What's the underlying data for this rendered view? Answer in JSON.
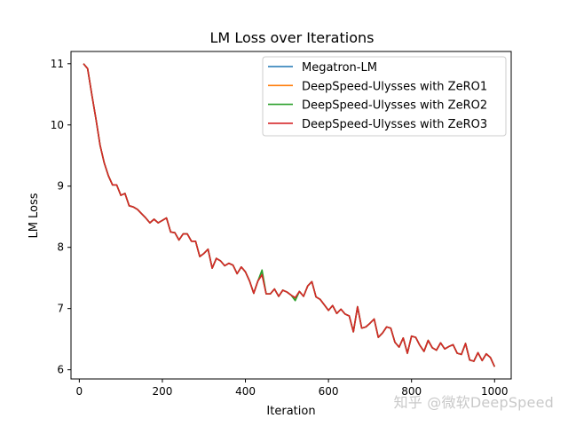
{
  "colors": {
    "megatron": "#1f77b4",
    "zero1": "#ff7f0e",
    "zero2": "#2ca02c",
    "zero3": "#d62728"
  },
  "watermark": "知乎 @微软DeepSpeed",
  "chart_data": {
    "type": "line",
    "title": "LM Loss over Iterations",
    "xlabel": "Iteration",
    "ylabel": "LM Loss",
    "xlim": [
      -20,
      1040
    ],
    "ylim": [
      5.85,
      11.2
    ],
    "xticks": [
      0,
      200,
      400,
      600,
      800,
      1000
    ],
    "yticks": [
      6,
      7,
      8,
      9,
      10,
      11
    ],
    "grid": false,
    "legend_position": "top-right",
    "x": [
      10,
      20,
      30,
      40,
      50,
      60,
      70,
      80,
      90,
      100,
      110,
      120,
      130,
      140,
      150,
      160,
      170,
      180,
      190,
      200,
      210,
      220,
      230,
      240,
      250,
      260,
      270,
      280,
      290,
      300,
      310,
      320,
      330,
      340,
      350,
      360,
      370,
      380,
      390,
      400,
      410,
      420,
      430,
      440,
      450,
      460,
      470,
      480,
      490,
      500,
      510,
      520,
      530,
      540,
      550,
      560,
      570,
      580,
      590,
      600,
      610,
      620,
      630,
      640,
      650,
      660,
      670,
      680,
      690,
      700,
      710,
      720,
      730,
      740,
      750,
      760,
      770,
      780,
      790,
      800,
      810,
      820,
      830,
      840,
      850,
      860,
      870,
      880,
      890,
      900,
      910,
      920,
      930,
      940,
      950,
      960,
      970,
      980,
      990,
      1000
    ],
    "series": [
      {
        "name": "Megatron-LM",
        "color_key": "megatron",
        "values": [
          11.0,
          10.92,
          10.5,
          10.1,
          9.67,
          9.38,
          9.17,
          9.02,
          9.02,
          8.85,
          8.88,
          8.68,
          8.66,
          8.62,
          8.55,
          8.48,
          8.4,
          8.46,
          8.4,
          8.44,
          8.48,
          8.25,
          8.24,
          8.12,
          8.22,
          8.22,
          8.1,
          8.1,
          7.85,
          7.9,
          7.97,
          7.66,
          7.82,
          7.78,
          7.7,
          7.74,
          7.71,
          7.57,
          7.68,
          7.6,
          7.45,
          7.25,
          7.45,
          7.58,
          7.24,
          7.24,
          7.32,
          7.2,
          7.3,
          7.27,
          7.22,
          7.15,
          7.28,
          7.2,
          7.37,
          7.44,
          7.19,
          7.15,
          7.06,
          6.97,
          7.05,
          6.92,
          6.99,
          6.91,
          6.88,
          6.62,
          7.03,
          6.68,
          6.7,
          6.76,
          6.83,
          6.53,
          6.6,
          6.7,
          6.68,
          6.45,
          6.37,
          6.52,
          6.27,
          6.55,
          6.53,
          6.4,
          6.3,
          6.48,
          6.36,
          6.32,
          6.44,
          6.34,
          6.38,
          6.41,
          6.27,
          6.25,
          6.43,
          6.16,
          6.14,
          6.28,
          6.15,
          6.26,
          6.2,
          6.05
        ]
      },
      {
        "name": "DeepSpeed-Ulysses with ZeRO1",
        "color_key": "zero1",
        "values": [
          11.0,
          10.92,
          10.5,
          10.1,
          9.67,
          9.38,
          9.17,
          9.02,
          9.02,
          8.85,
          8.88,
          8.68,
          8.66,
          8.62,
          8.55,
          8.48,
          8.4,
          8.46,
          8.4,
          8.44,
          8.48,
          8.25,
          8.24,
          8.12,
          8.22,
          8.22,
          8.1,
          8.1,
          7.85,
          7.9,
          7.97,
          7.66,
          7.82,
          7.78,
          7.7,
          7.74,
          7.71,
          7.57,
          7.68,
          7.6,
          7.45,
          7.25,
          7.45,
          7.56,
          7.24,
          7.24,
          7.32,
          7.2,
          7.3,
          7.27,
          7.22,
          7.17,
          7.28,
          7.2,
          7.37,
          7.44,
          7.19,
          7.15,
          7.06,
          6.97,
          7.05,
          6.92,
          6.99,
          6.91,
          6.88,
          6.62,
          7.03,
          6.68,
          6.7,
          6.76,
          6.83,
          6.53,
          6.6,
          6.7,
          6.68,
          6.45,
          6.37,
          6.52,
          6.27,
          6.55,
          6.53,
          6.4,
          6.3,
          6.48,
          6.36,
          6.32,
          6.44,
          6.34,
          6.38,
          6.41,
          6.27,
          6.25,
          6.43,
          6.16,
          6.14,
          6.28,
          6.15,
          6.26,
          6.2,
          6.05
        ]
      },
      {
        "name": "DeepSpeed-Ulysses with ZeRO2",
        "color_key": "zero2",
        "values": [
          11.0,
          10.92,
          10.5,
          10.1,
          9.67,
          9.38,
          9.17,
          9.02,
          9.02,
          8.85,
          8.88,
          8.68,
          8.66,
          8.62,
          8.55,
          8.48,
          8.4,
          8.46,
          8.4,
          8.44,
          8.48,
          8.25,
          8.24,
          8.12,
          8.22,
          8.22,
          8.1,
          8.1,
          7.85,
          7.9,
          7.97,
          7.66,
          7.82,
          7.78,
          7.7,
          7.74,
          7.71,
          7.57,
          7.68,
          7.6,
          7.45,
          7.25,
          7.45,
          7.63,
          7.24,
          7.24,
          7.32,
          7.2,
          7.3,
          7.27,
          7.22,
          7.13,
          7.28,
          7.2,
          7.37,
          7.44,
          7.19,
          7.15,
          7.06,
          6.97,
          7.05,
          6.92,
          6.99,
          6.91,
          6.88,
          6.62,
          7.03,
          6.68,
          6.7,
          6.76,
          6.83,
          6.53,
          6.6,
          6.7,
          6.68,
          6.45,
          6.37,
          6.52,
          6.27,
          6.55,
          6.53,
          6.4,
          6.3,
          6.48,
          6.36,
          6.32,
          6.44,
          6.34,
          6.38,
          6.41,
          6.27,
          6.25,
          6.43,
          6.16,
          6.14,
          6.28,
          6.15,
          6.26,
          6.2,
          6.05
        ]
      },
      {
        "name": "DeepSpeed-Ulysses with ZeRO3",
        "color_key": "zero3",
        "values": [
          11.0,
          10.92,
          10.5,
          10.1,
          9.67,
          9.38,
          9.17,
          9.02,
          9.02,
          8.85,
          8.88,
          8.68,
          8.66,
          8.62,
          8.55,
          8.48,
          8.4,
          8.46,
          8.4,
          8.44,
          8.48,
          8.25,
          8.24,
          8.12,
          8.22,
          8.22,
          8.1,
          8.1,
          7.85,
          7.9,
          7.97,
          7.66,
          7.82,
          7.78,
          7.7,
          7.74,
          7.71,
          7.57,
          7.68,
          7.6,
          7.45,
          7.25,
          7.45,
          7.55,
          7.24,
          7.24,
          7.32,
          7.2,
          7.3,
          7.27,
          7.22,
          7.18,
          7.28,
          7.2,
          7.37,
          7.44,
          7.19,
          7.15,
          7.06,
          6.97,
          7.05,
          6.92,
          6.99,
          6.91,
          6.88,
          6.62,
          7.03,
          6.68,
          6.7,
          6.76,
          6.83,
          6.53,
          6.6,
          6.7,
          6.68,
          6.45,
          6.37,
          6.52,
          6.27,
          6.55,
          6.53,
          6.4,
          6.3,
          6.48,
          6.36,
          6.32,
          6.44,
          6.34,
          6.38,
          6.41,
          6.27,
          6.25,
          6.43,
          6.16,
          6.14,
          6.28,
          6.15,
          6.26,
          6.2,
          6.05
        ]
      }
    ]
  }
}
